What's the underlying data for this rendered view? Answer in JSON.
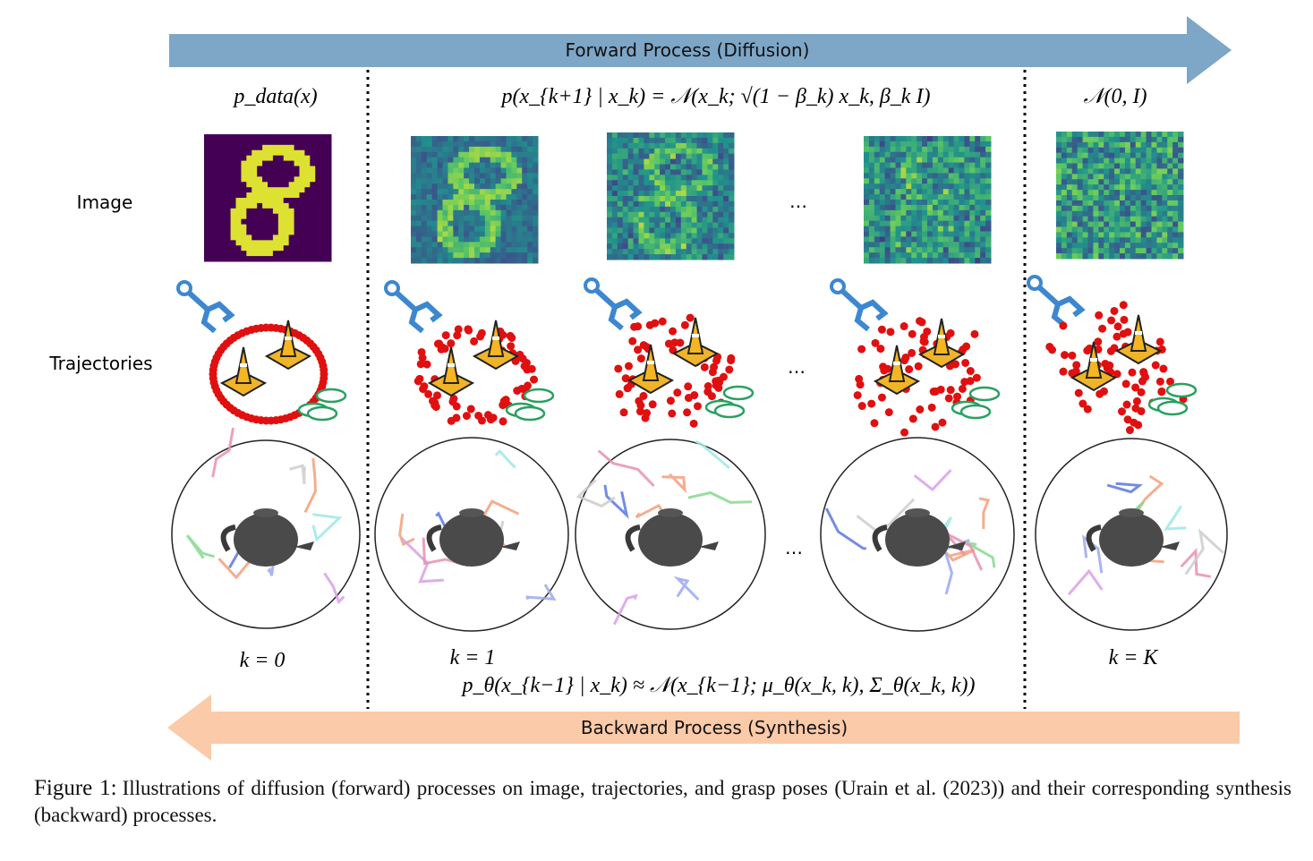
{
  "figure": {
    "forward_arrow": "Forward Process (Diffusion)",
    "backward_arrow": "Backward Process (Synthesis)",
    "columns": [
      {
        "header": "p_data(x)",
        "step": "k = 0"
      },
      {
        "header": "p(x_{k+1} | x_k) = 𝒩(x_k; √(1 − β_k) x_k, β_k I)",
        "step": "k = 1"
      },
      {
        "header": "𝒩(0, I)",
        "step": "k = K"
      }
    ],
    "rows": [
      "Image",
      "Trajectories"
    ],
    "ellipsis": "…",
    "backward_formula": "p_θ(x_{k−1} | x_k) ≈ 𝒩(x_{k−1}; μ_θ(x_k, k), Σ_θ(x_k, k))",
    "caption": {
      "label": "Figure 1:",
      "text": "Illustrations of diffusion (forward) processes on image, trajectories, and grasp poses (Urain et al. (2023)) and their corresponding synthesis (backward) processes."
    }
  }
}
